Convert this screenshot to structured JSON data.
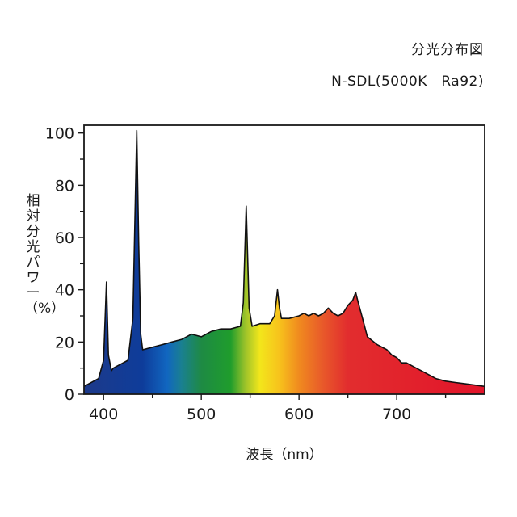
{
  "chart_data": {
    "type": "area",
    "title": "分光分布図",
    "subtitle": "N-SDL(5000K　Ra92)",
    "xlabel": "波長（nm）",
    "ylabel": "相対分光パワー（%）",
    "xlim": [
      380,
      790
    ],
    "ylim": [
      0,
      103
    ],
    "xticks": [
      400,
      500,
      600,
      700
    ],
    "yticks": [
      0,
      20,
      40,
      60,
      80,
      100
    ],
    "legend": "none",
    "grid": false,
    "x": [
      380,
      395,
      400,
      403,
      405,
      408,
      410,
      420,
      425,
      430,
      434,
      436,
      438,
      440,
      450,
      460,
      470,
      480,
      485,
      490,
      500,
      510,
      520,
      530,
      540,
      543,
      546,
      549,
      552,
      560,
      570,
      575,
      578,
      580,
      582,
      590,
      600,
      605,
      610,
      615,
      620,
      625,
      630,
      635,
      640,
      645,
      650,
      655,
      658,
      660,
      665,
      670,
      680,
      690,
      695,
      700,
      705,
      710,
      720,
      730,
      740,
      750,
      760,
      770,
      780,
      790
    ],
    "y": [
      3,
      6,
      13,
      43,
      15,
      9,
      10,
      12,
      13,
      29,
      101,
      58,
      23,
      17,
      18,
      19,
      20,
      21,
      22,
      23,
      22,
      24,
      25,
      25,
      26,
      35,
      72,
      33,
      26,
      27,
      27,
      30,
      40,
      33,
      29,
      29,
      30,
      31,
      30,
      31,
      30,
      31,
      33,
      31,
      30,
      31,
      34,
      36,
      39,
      36,
      29,
      22,
      19,
      17,
      15,
      14,
      12,
      12,
      10,
      8,
      6,
      5,
      4.5,
      4,
      3.5,
      3
    ],
    "spectrum_colors": [
      {
        "wl": 380,
        "color": "#1d3a8a"
      },
      {
        "wl": 440,
        "color": "#0e3c9a"
      },
      {
        "wl": 465,
        "color": "#1166c0"
      },
      {
        "wl": 480,
        "color": "#1a8090"
      },
      {
        "wl": 500,
        "color": "#1e8a44"
      },
      {
        "wl": 530,
        "color": "#1f9d2c"
      },
      {
        "wl": 545,
        "color": "#9cc22a"
      },
      {
        "wl": 560,
        "color": "#f3e61b"
      },
      {
        "wl": 580,
        "color": "#f7c21c"
      },
      {
        "wl": 600,
        "color": "#f08a1f"
      },
      {
        "wl": 625,
        "color": "#e8582a"
      },
      {
        "wl": 650,
        "color": "#e22d2e"
      },
      {
        "wl": 790,
        "color": "#e2142a"
      }
    ],
    "outline_color": "#111111"
  }
}
